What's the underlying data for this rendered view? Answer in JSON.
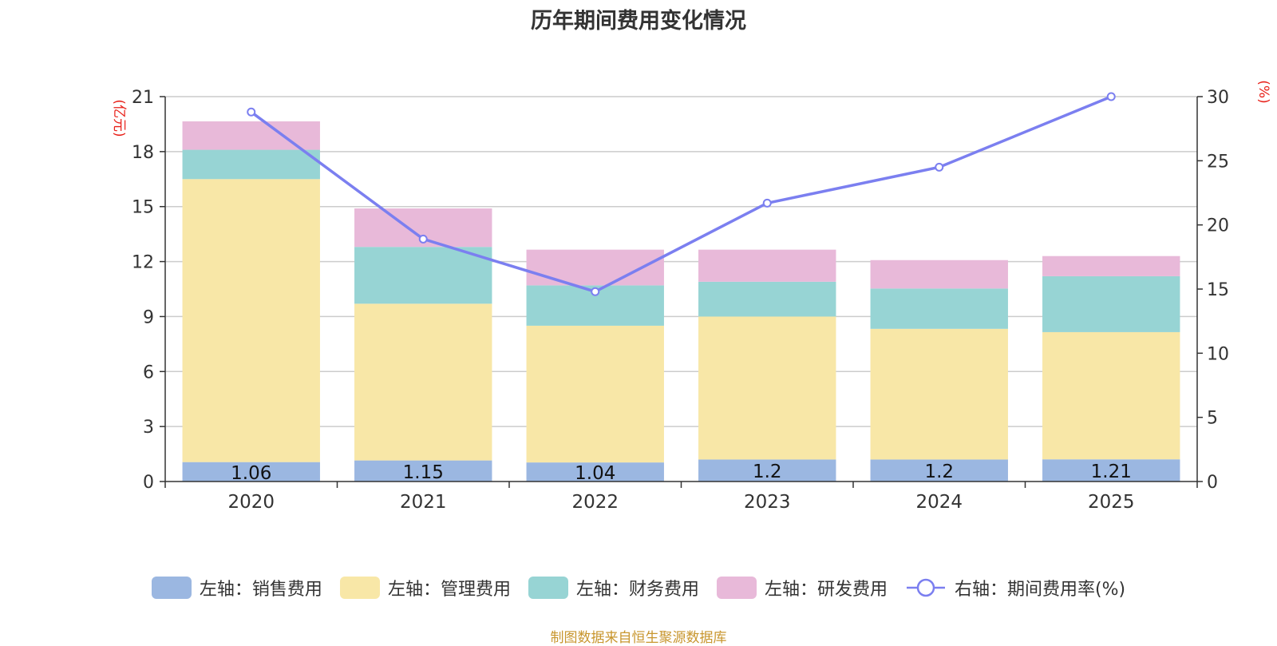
{
  "chart_data": {
    "type": "bar",
    "title": "历年期间费用变化情况",
    "categories": [
      "2020",
      "2021",
      "2022",
      "2023",
      "2024",
      "2025"
    ],
    "series": [
      {
        "name": "左轴：销售费用",
        "axis": "left",
        "type": "bar",
        "color": "#9bb7e1",
        "values": [
          1.06,
          1.15,
          1.04,
          1.2,
          1.2,
          1.21
        ]
      },
      {
        "name": "左轴：管理费用",
        "axis": "left",
        "type": "bar",
        "color": "#f8e7a7",
        "values": [
          15.44,
          8.55,
          7.46,
          7.8,
          7.13,
          6.94
        ]
      },
      {
        "name": "左轴：财务费用",
        "axis": "left",
        "type": "bar",
        "color": "#97d4d4",
        "values": [
          1.6,
          3.1,
          2.2,
          1.9,
          2.2,
          3.05
        ]
      },
      {
        "name": "左轴：研发费用",
        "axis": "left",
        "type": "bar",
        "color": "#e8b9d9",
        "values": [
          1.55,
          2.1,
          1.95,
          1.75,
          1.55,
          1.1
        ]
      },
      {
        "name": "右轴：期间费用率(%)",
        "axis": "right",
        "type": "line",
        "color": "#7b7ff0",
        "values": [
          28.8,
          18.9,
          14.8,
          21.7,
          24.5,
          30.0
        ]
      }
    ],
    "bar_labels": [
      "1.06",
      "1.15",
      "1.04",
      "1.2",
      "1.2",
      "1.21"
    ],
    "left_axis": {
      "label": "(亿元)",
      "ylim": [
        0,
        21
      ],
      "ticks": [
        "0",
        "3",
        "6",
        "9",
        "12",
        "15",
        "18",
        "21"
      ]
    },
    "right_axis": {
      "label": "(%)",
      "ylim": [
        0,
        30
      ],
      "ticks": [
        "0",
        "5",
        "10",
        "15",
        "20",
        "25",
        "30"
      ]
    },
    "grid": true,
    "legend_position": "bottom",
    "source": "制图数据来自恒生聚源数据库"
  }
}
